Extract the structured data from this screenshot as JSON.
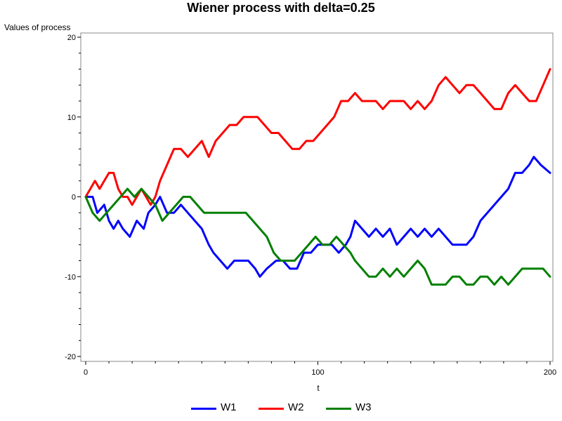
{
  "chart_data": {
    "type": "line",
    "title": "Wiener process with delta=0.25",
    "ylabel": "Values of process",
    "xlabel": "t",
    "xlim": [
      0,
      200
    ],
    "ylim": [
      -20,
      20
    ],
    "x_ticks": [
      0,
      100,
      200
    ],
    "y_ticks": [
      -20,
      -10,
      0,
      10,
      20
    ],
    "grid": false,
    "legend_position": "bottom",
    "series": [
      {
        "name": "W1",
        "color": "#0000ff",
        "points": [
          [
            0,
            0
          ],
          [
            3,
            0
          ],
          [
            5,
            -2
          ],
          [
            8,
            -1
          ],
          [
            10,
            -3
          ],
          [
            12,
            -4
          ],
          [
            14,
            -3
          ],
          [
            16,
            -4
          ],
          [
            19,
            -5
          ],
          [
            22,
            -3
          ],
          [
            25,
            -4
          ],
          [
            27,
            -2
          ],
          [
            30,
            -1
          ],
          [
            32,
            0
          ],
          [
            35,
            -2
          ],
          [
            38,
            -2
          ],
          [
            41,
            -1
          ],
          [
            44,
            -2
          ],
          [
            47,
            -3
          ],
          [
            50,
            -4
          ],
          [
            53,
            -6
          ],
          [
            55,
            -7
          ],
          [
            58,
            -8
          ],
          [
            61,
            -9
          ],
          [
            64,
            -8
          ],
          [
            67,
            -8
          ],
          [
            70,
            -8
          ],
          [
            73,
            -9
          ],
          [
            75,
            -10
          ],
          [
            78,
            -9
          ],
          [
            82,
            -8
          ],
          [
            85,
            -8
          ],
          [
            88,
            -9
          ],
          [
            91,
            -9
          ],
          [
            94,
            -7
          ],
          [
            97,
            -7
          ],
          [
            100,
            -6
          ],
          [
            103,
            -6
          ],
          [
            106,
            -6
          ],
          [
            109,
            -7
          ],
          [
            112,
            -6
          ],
          [
            114,
            -5
          ],
          [
            116,
            -3
          ],
          [
            119,
            -4
          ],
          [
            122,
            -5
          ],
          [
            125,
            -4
          ],
          [
            128,
            -5
          ],
          [
            131,
            -4
          ],
          [
            134,
            -6
          ],
          [
            137,
            -5
          ],
          [
            140,
            -4
          ],
          [
            143,
            -5
          ],
          [
            146,
            -4
          ],
          [
            149,
            -5
          ],
          [
            152,
            -4
          ],
          [
            155,
            -5
          ],
          [
            158,
            -6
          ],
          [
            161,
            -6
          ],
          [
            164,
            -6
          ],
          [
            167,
            -5
          ],
          [
            170,
            -3
          ],
          [
            173,
            -2
          ],
          [
            176,
            -1
          ],
          [
            179,
            0
          ],
          [
            182,
            1
          ],
          [
            185,
            3
          ],
          [
            188,
            3
          ],
          [
            191,
            4
          ],
          [
            193,
            5
          ],
          [
            196,
            4
          ],
          [
            200,
            3
          ]
        ]
      },
      {
        "name": "W2",
        "color": "#ff0000",
        "points": [
          [
            0,
            0
          ],
          [
            2,
            1
          ],
          [
            4,
            2
          ],
          [
            6,
            1
          ],
          [
            8,
            2
          ],
          [
            10,
            3
          ],
          [
            12,
            3
          ],
          [
            14,
            1
          ],
          [
            16,
            0
          ],
          [
            18,
            0
          ],
          [
            20,
            -1
          ],
          [
            22,
            0
          ],
          [
            24,
            1
          ],
          [
            26,
            0
          ],
          [
            28,
            -1
          ],
          [
            30,
            0
          ],
          [
            32,
            2
          ],
          [
            35,
            4
          ],
          [
            38,
            6
          ],
          [
            41,
            6
          ],
          [
            44,
            5
          ],
          [
            47,
            6
          ],
          [
            50,
            7
          ],
          [
            53,
            5
          ],
          [
            56,
            7
          ],
          [
            59,
            8
          ],
          [
            62,
            9
          ],
          [
            65,
            9
          ],
          [
            68,
            10
          ],
          [
            71,
            10
          ],
          [
            74,
            10
          ],
          [
            77,
            9
          ],
          [
            80,
            8
          ],
          [
            83,
            8
          ],
          [
            86,
            7
          ],
          [
            89,
            6
          ],
          [
            92,
            6
          ],
          [
            95,
            7
          ],
          [
            98,
            7
          ],
          [
            101,
            8
          ],
          [
            104,
            9
          ],
          [
            107,
            10
          ],
          [
            110,
            12
          ],
          [
            113,
            12
          ],
          [
            116,
            13
          ],
          [
            119,
            12
          ],
          [
            122,
            12
          ],
          [
            125,
            12
          ],
          [
            128,
            11
          ],
          [
            131,
            12
          ],
          [
            134,
            12
          ],
          [
            137,
            12
          ],
          [
            140,
            11
          ],
          [
            143,
            12
          ],
          [
            146,
            11
          ],
          [
            149,
            12
          ],
          [
            152,
            14
          ],
          [
            155,
            15
          ],
          [
            158,
            14
          ],
          [
            161,
            13
          ],
          [
            164,
            14
          ],
          [
            167,
            14
          ],
          [
            170,
            13
          ],
          [
            173,
            12
          ],
          [
            176,
            11
          ],
          [
            179,
            11
          ],
          [
            182,
            13
          ],
          [
            185,
            14
          ],
          [
            188,
            13
          ],
          [
            191,
            12
          ],
          [
            194,
            12
          ],
          [
            197,
            14
          ],
          [
            200,
            16
          ]
        ]
      },
      {
        "name": "W3",
        "color": "#008000",
        "points": [
          [
            0,
            0
          ],
          [
            3,
            -2
          ],
          [
            6,
            -3
          ],
          [
            9,
            -2
          ],
          [
            12,
            -1
          ],
          [
            15,
            0
          ],
          [
            18,
            1
          ],
          [
            21,
            0
          ],
          [
            24,
            1
          ],
          [
            27,
            0
          ],
          [
            30,
            -1
          ],
          [
            33,
            -3
          ],
          [
            36,
            -2
          ],
          [
            39,
            -1
          ],
          [
            42,
            0
          ],
          [
            45,
            0
          ],
          [
            48,
            -1
          ],
          [
            51,
            -2
          ],
          [
            54,
            -2
          ],
          [
            57,
            -2
          ],
          [
            60,
            -2
          ],
          [
            63,
            -2
          ],
          [
            66,
            -2
          ],
          [
            69,
            -2
          ],
          [
            72,
            -3
          ],
          [
            75,
            -4
          ],
          [
            78,
            -5
          ],
          [
            81,
            -7
          ],
          [
            84,
            -8
          ],
          [
            87,
            -8
          ],
          [
            90,
            -8
          ],
          [
            93,
            -7
          ],
          [
            96,
            -6
          ],
          [
            99,
            -5
          ],
          [
            102,
            -6
          ],
          [
            105,
            -6
          ],
          [
            108,
            -5
          ],
          [
            111,
            -6
          ],
          [
            114,
            -7
          ],
          [
            116,
            -8
          ],
          [
            119,
            -9
          ],
          [
            122,
            -10
          ],
          [
            125,
            -10
          ],
          [
            128,
            -9
          ],
          [
            131,
            -10
          ],
          [
            134,
            -9
          ],
          [
            137,
            -10
          ],
          [
            140,
            -9
          ],
          [
            143,
            -8
          ],
          [
            146,
            -9
          ],
          [
            149,
            -11
          ],
          [
            152,
            -11
          ],
          [
            155,
            -11
          ],
          [
            158,
            -10
          ],
          [
            161,
            -10
          ],
          [
            164,
            -11
          ],
          [
            167,
            -11
          ],
          [
            170,
            -10
          ],
          [
            173,
            -10
          ],
          [
            176,
            -11
          ],
          [
            179,
            -10
          ],
          [
            182,
            -11
          ],
          [
            185,
            -10
          ],
          [
            188,
            -9
          ],
          [
            191,
            -9
          ],
          [
            194,
            -9
          ],
          [
            197,
            -9
          ],
          [
            200,
            -10
          ]
        ]
      }
    ]
  }
}
